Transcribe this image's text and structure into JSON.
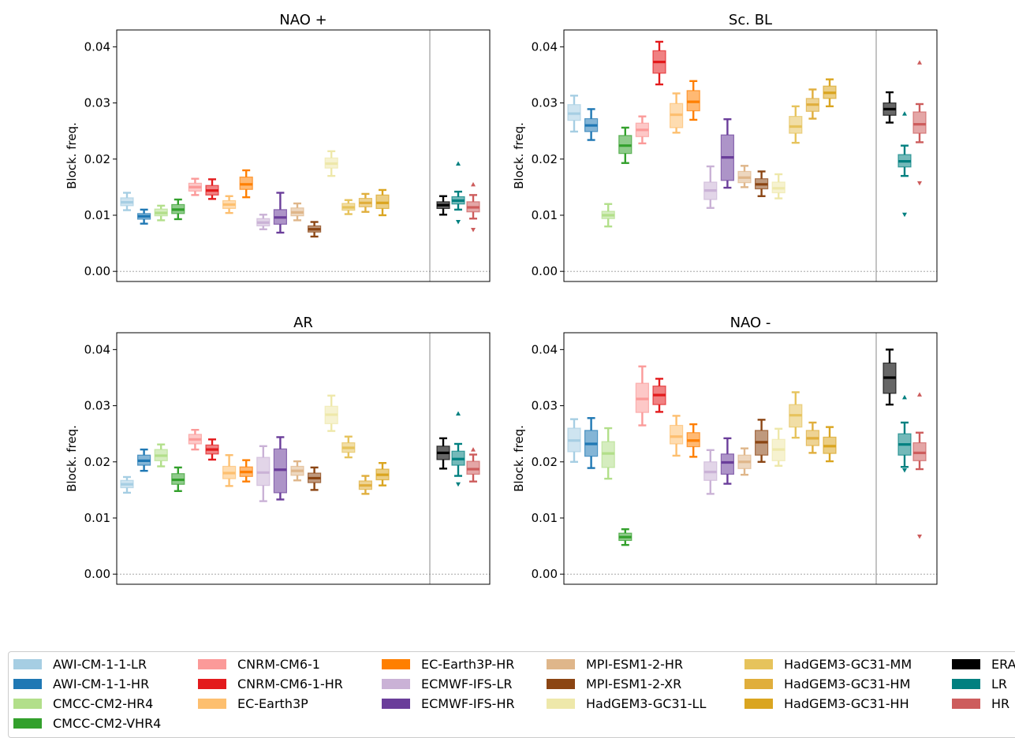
{
  "models": [
    {
      "name": "AWI-CM-1-1-LR",
      "color": "#a6cee3",
      "fill": "#a6cee3"
    },
    {
      "name": "AWI-CM-1-1-HR",
      "color": "#1f78b4",
      "fill": "#1f78b4"
    },
    {
      "name": "CMCC-CM2-HR4",
      "color": "#b2df8a",
      "fill": "#b2df8a"
    },
    {
      "name": "CMCC-CM2-VHR4",
      "color": "#33a02c",
      "fill": "#33a02c"
    },
    {
      "name": "CNRM-CM6-1",
      "color": "#fb9a99",
      "fill": "#fb9a99"
    },
    {
      "name": "CNRM-CM6-1-HR",
      "color": "#e31a1c",
      "fill": "#e31a1c"
    },
    {
      "name": "EC-Earth3P",
      "color": "#fdbf6f",
      "fill": "#fdbf6f"
    },
    {
      "name": "EC-Earth3P-HR",
      "color": "#ff7f00",
      "fill": "#ff7f00"
    },
    {
      "name": "ECMWF-IFS-LR",
      "color": "#cab2d6",
      "fill": "#cab2d6"
    },
    {
      "name": "ECMWF-IFS-HR",
      "color": "#6a3d9a",
      "fill": "#6a3d9a"
    },
    {
      "name": "MPI-ESM1-2-HR",
      "color": "#dfb68a",
      "fill": "#dfb68a"
    },
    {
      "name": "MPI-ESM1-2-XR",
      "color": "#8b4513",
      "fill": "#8b4513"
    },
    {
      "name": "HadGEM3-GC31-LL",
      "color": "#eee8aa",
      "fill": "#eee8aa"
    },
    {
      "name": "HadGEM3-GC31-MM",
      "color": "#e6c35c",
      "fill": "#e6c35c"
    },
    {
      "name": "HadGEM3-GC31-HM",
      "color": "#e0ae3c",
      "fill": "#e0ae3c"
    },
    {
      "name": "HadGEM3-GC31-HH",
      "color": "#daa520",
      "fill": "#daa520"
    }
  ],
  "groups": [
    {
      "name": "ERA",
      "color": "#000000",
      "fill": "#000000"
    },
    {
      "name": "LR",
      "color": "#008080",
      "fill": "#008080"
    },
    {
      "name": "HR",
      "color": "#cd5c5c",
      "fill": "#cd5c5c"
    }
  ],
  "legend": [
    [
      "AWI-CM-1-1-LR",
      "AWI-CM-1-1-HR",
      "CMCC-CM2-HR4",
      "CMCC-CM2-VHR4"
    ],
    [
      "CNRM-CM6-1",
      "CNRM-CM6-1-HR",
      "EC-Earth3P"
    ],
    [
      "EC-Earth3P-HR",
      "ECMWF-IFS-LR",
      "ECMWF-IFS-HR"
    ],
    [
      "MPI-ESM1-2-HR",
      "MPI-ESM1-2-XR",
      "HadGEM3-GC31-LL"
    ],
    [
      "HadGEM3-GC31-MM",
      "HadGEM3-GC31-HM",
      "HadGEM3-GC31-HH"
    ],
    [
      "ERA",
      "LR",
      "HR"
    ]
  ],
  "chart_data": [
    {
      "type": "box",
      "title": "NAO +",
      "ylabel": "Block. freq.",
      "ylim": [
        -0.0018,
        0.043
      ],
      "yticks": [
        "0.00",
        "0.01",
        "0.02",
        "0.03",
        "0.04"
      ],
      "models": [
        {
          "q1": 0.0117,
          "med": 0.0123,
          "q3": 0.0131,
          "lo": 0.0109,
          "hi": 0.014
        },
        {
          "q1": 0.0093,
          "med": 0.0098,
          "q3": 0.0103,
          "lo": 0.0085,
          "hi": 0.011
        },
        {
          "q1": 0.0099,
          "med": 0.0104,
          "q3": 0.0111,
          "lo": 0.0091,
          "hi": 0.0117
        },
        {
          "q1": 0.0103,
          "med": 0.011,
          "q3": 0.0119,
          "lo": 0.0093,
          "hi": 0.0128
        },
        {
          "q1": 0.0143,
          "med": 0.015,
          "q3": 0.0157,
          "lo": 0.0136,
          "hi": 0.0165
        },
        {
          "q1": 0.0136,
          "med": 0.0144,
          "q3": 0.0153,
          "lo": 0.0129,
          "hi": 0.0164
        },
        {
          "q1": 0.0112,
          "med": 0.0119,
          "q3": 0.0126,
          "lo": 0.0104,
          "hi": 0.0134
        },
        {
          "q1": 0.0146,
          "med": 0.0155,
          "q3": 0.0168,
          "lo": 0.0132,
          "hi": 0.018
        },
        {
          "q1": 0.0081,
          "med": 0.0087,
          "q3": 0.0094,
          "lo": 0.0075,
          "hi": 0.0101
        },
        {
          "q1": 0.0084,
          "med": 0.0096,
          "q3": 0.011,
          "lo": 0.0069,
          "hi": 0.014
        },
        {
          "q1": 0.0099,
          "med": 0.0105,
          "q3": 0.0113,
          "lo": 0.0091,
          "hi": 0.0121
        },
        {
          "q1": 0.007,
          "med": 0.0075,
          "q3": 0.0081,
          "lo": 0.0062,
          "hi": 0.0088
        },
        {
          "q1": 0.0184,
          "med": 0.0192,
          "q3": 0.0202,
          "lo": 0.017,
          "hi": 0.0214
        },
        {
          "q1": 0.0109,
          "med": 0.0114,
          "q3": 0.0121,
          "lo": 0.0102,
          "hi": 0.0127
        },
        {
          "q1": 0.0115,
          "med": 0.0122,
          "q3": 0.013,
          "lo": 0.0106,
          "hi": 0.0138
        },
        {
          "q1": 0.0112,
          "med": 0.0122,
          "q3": 0.0136,
          "lo": 0.01,
          "hi": 0.0145
        }
      ],
      "groups": [
        {
          "q1": 0.0112,
          "med": 0.0118,
          "q3": 0.0124,
          "lo": 0.0101,
          "hi": 0.0134,
          "fu": null,
          "fd": null
        },
        {
          "q1": 0.012,
          "med": 0.0126,
          "q3": 0.0133,
          "lo": 0.011,
          "hi": 0.0142,
          "fu": 0.0192,
          "fd": 0.0088
        },
        {
          "q1": 0.0106,
          "med": 0.0114,
          "q3": 0.0124,
          "lo": 0.0094,
          "hi": 0.0136,
          "fu": 0.0155,
          "fd": 0.0074
        }
      ]
    },
    {
      "type": "box",
      "title": "Sc. BL",
      "ylabel": "Block. freq.",
      "ylim": [
        -0.0018,
        0.043
      ],
      "yticks": [
        "0.00",
        "0.01",
        "0.02",
        "0.03",
        "0.04"
      ],
      "models": [
        {
          "q1": 0.0269,
          "med": 0.0281,
          "q3": 0.0297,
          "lo": 0.0249,
          "hi": 0.0313
        },
        {
          "q1": 0.0249,
          "med": 0.026,
          "q3": 0.0272,
          "lo": 0.0234,
          "hi": 0.0289
        },
        {
          "q1": 0.0094,
          "med": 0.01,
          "q3": 0.0107,
          "lo": 0.008,
          "hi": 0.012
        },
        {
          "q1": 0.021,
          "med": 0.0224,
          "q3": 0.0242,
          "lo": 0.0193,
          "hi": 0.0256
        },
        {
          "q1": 0.024,
          "med": 0.0252,
          "q3": 0.0264,
          "lo": 0.0228,
          "hi": 0.0276
        },
        {
          "q1": 0.0353,
          "med": 0.0373,
          "q3": 0.0393,
          "lo": 0.0333,
          "hi": 0.0409
        },
        {
          "q1": 0.0256,
          "med": 0.0279,
          "q3": 0.0299,
          "lo": 0.0247,
          "hi": 0.0317
        },
        {
          "q1": 0.0286,
          "med": 0.0302,
          "q3": 0.0322,
          "lo": 0.027,
          "hi": 0.0339
        },
        {
          "q1": 0.0128,
          "med": 0.0144,
          "q3": 0.0159,
          "lo": 0.0113,
          "hi": 0.0187
        },
        {
          "q1": 0.0162,
          "med": 0.0203,
          "q3": 0.0243,
          "lo": 0.0149,
          "hi": 0.0271
        },
        {
          "q1": 0.0158,
          "med": 0.0167,
          "q3": 0.0178,
          "lo": 0.015,
          "hi": 0.0188
        },
        {
          "q1": 0.0147,
          "med": 0.0155,
          "q3": 0.0165,
          "lo": 0.0134,
          "hi": 0.0178
        },
        {
          "q1": 0.014,
          "med": 0.0148,
          "q3": 0.0159,
          "lo": 0.013,
          "hi": 0.0173
        },
        {
          "q1": 0.0246,
          "med": 0.0258,
          "q3": 0.0276,
          "lo": 0.0229,
          "hi": 0.0294
        },
        {
          "q1": 0.0285,
          "med": 0.0297,
          "q3": 0.0308,
          "lo": 0.0272,
          "hi": 0.0324
        },
        {
          "q1": 0.0308,
          "med": 0.0318,
          "q3": 0.033,
          "lo": 0.0294,
          "hi": 0.0342
        }
      ],
      "groups": [
        {
          "q1": 0.0278,
          "med": 0.0289,
          "q3": 0.03,
          "lo": 0.0265,
          "hi": 0.0319,
          "fu": null,
          "fd": null
        },
        {
          "q1": 0.0186,
          "med": 0.0196,
          "q3": 0.0208,
          "lo": 0.017,
          "hi": 0.0224,
          "fu": 0.0281,
          "fd": 0.0101
        },
        {
          "q1": 0.0246,
          "med": 0.0262,
          "q3": 0.0284,
          "lo": 0.023,
          "hi": 0.0298,
          "fu": 0.0372,
          "fd": 0.0157
        }
      ]
    },
    {
      "type": "box",
      "title": "AR",
      "ylabel": "Block. freq.",
      "ylim": [
        -0.0018,
        0.043
      ],
      "yticks": [
        "0.00",
        "0.01",
        "0.02",
        "0.03",
        "0.04"
      ],
      "models": [
        {
          "q1": 0.0154,
          "med": 0.016,
          "q3": 0.0167,
          "lo": 0.0145,
          "hi": 0.0173
        },
        {
          "q1": 0.0194,
          "med": 0.0202,
          "q3": 0.0212,
          "lo": 0.0184,
          "hi": 0.0222
        },
        {
          "q1": 0.0202,
          "med": 0.0211,
          "q3": 0.0222,
          "lo": 0.0192,
          "hi": 0.0231
        },
        {
          "q1": 0.016,
          "med": 0.0168,
          "q3": 0.0179,
          "lo": 0.0148,
          "hi": 0.019
        },
        {
          "q1": 0.0232,
          "med": 0.024,
          "q3": 0.0249,
          "lo": 0.0222,
          "hi": 0.0257
        },
        {
          "q1": 0.0214,
          "med": 0.0222,
          "q3": 0.023,
          "lo": 0.0204,
          "hi": 0.024
        },
        {
          "q1": 0.017,
          "med": 0.018,
          "q3": 0.0192,
          "lo": 0.0157,
          "hi": 0.0212
        },
        {
          "q1": 0.0174,
          "med": 0.0182,
          "q3": 0.0191,
          "lo": 0.0165,
          "hi": 0.0203
        },
        {
          "q1": 0.0158,
          "med": 0.0181,
          "q3": 0.0208,
          "lo": 0.013,
          "hi": 0.0228
        },
        {
          "q1": 0.0145,
          "med": 0.0186,
          "q3": 0.0223,
          "lo": 0.0133,
          "hi": 0.0244
        },
        {
          "q1": 0.0176,
          "med": 0.0184,
          "q3": 0.0192,
          "lo": 0.0167,
          "hi": 0.0201
        },
        {
          "q1": 0.0163,
          "med": 0.0171,
          "q3": 0.018,
          "lo": 0.015,
          "hi": 0.019
        },
        {
          "q1": 0.0268,
          "med": 0.0284,
          "q3": 0.0299,
          "lo": 0.0255,
          "hi": 0.0318
        },
        {
          "q1": 0.0217,
          "med": 0.0225,
          "q3": 0.0234,
          "lo": 0.0208,
          "hi": 0.0245
        },
        {
          "q1": 0.0151,
          "med": 0.0158,
          "q3": 0.0166,
          "lo": 0.0143,
          "hi": 0.0175
        },
        {
          "q1": 0.0168,
          "med": 0.0177,
          "q3": 0.0187,
          "lo": 0.0158,
          "hi": 0.0198
        }
      ],
      "groups": [
        {
          "q1": 0.0204,
          "med": 0.0216,
          "q3": 0.0228,
          "lo": 0.0188,
          "hi": 0.0242,
          "fu": null,
          "fd": null
        },
        {
          "q1": 0.0194,
          "med": 0.0205,
          "q3": 0.0219,
          "lo": 0.0175,
          "hi": 0.0232,
          "fu": 0.0286,
          "fd": 0.016
        },
        {
          "q1": 0.0178,
          "med": 0.0187,
          "q3": 0.0201,
          "lo": 0.0165,
          "hi": 0.0213,
          "fu": 0.0222,
          "fd": null
        }
      ]
    },
    {
      "type": "box",
      "title": "NAO -",
      "ylabel": "Block. freq.",
      "ylim": [
        -0.0018,
        0.043
      ],
      "yticks": [
        "0.00",
        "0.01",
        "0.02",
        "0.03",
        "0.04"
      ],
      "models": [
        {
          "q1": 0.0218,
          "med": 0.0238,
          "q3": 0.026,
          "lo": 0.02,
          "hi": 0.0276
        },
        {
          "q1": 0.021,
          "med": 0.0232,
          "q3": 0.0256,
          "lo": 0.0189,
          "hi": 0.0278
        },
        {
          "q1": 0.019,
          "med": 0.0215,
          "q3": 0.0236,
          "lo": 0.017,
          "hi": 0.026
        },
        {
          "q1": 0.006,
          "med": 0.0066,
          "q3": 0.0073,
          "lo": 0.0052,
          "hi": 0.008
        },
        {
          "q1": 0.0288,
          "med": 0.0312,
          "q3": 0.034,
          "lo": 0.0265,
          "hi": 0.037
        },
        {
          "q1": 0.0302,
          "med": 0.0319,
          "q3": 0.0335,
          "lo": 0.0289,
          "hi": 0.0348
        },
        {
          "q1": 0.0232,
          "med": 0.0245,
          "q3": 0.0265,
          "lo": 0.0211,
          "hi": 0.0282
        },
        {
          "q1": 0.0227,
          "med": 0.0238,
          "q3": 0.0252,
          "lo": 0.0209,
          "hi": 0.0267
        },
        {
          "q1": 0.0167,
          "med": 0.0182,
          "q3": 0.02,
          "lo": 0.0143,
          "hi": 0.0221
        },
        {
          "q1": 0.0178,
          "med": 0.0199,
          "q3": 0.0214,
          "lo": 0.0161,
          "hi": 0.0242
        },
        {
          "q1": 0.0188,
          "med": 0.02,
          "q3": 0.0212,
          "lo": 0.0177,
          "hi": 0.0224
        },
        {
          "q1": 0.0212,
          "med": 0.0235,
          "q3": 0.0256,
          "lo": 0.02,
          "hi": 0.0275
        },
        {
          "q1": 0.0202,
          "med": 0.0222,
          "q3": 0.024,
          "lo": 0.0193,
          "hi": 0.0259
        },
        {
          "q1": 0.0262,
          "med": 0.0283,
          "q3": 0.0302,
          "lo": 0.0243,
          "hi": 0.0324
        },
        {
          "q1": 0.0229,
          "med": 0.0242,
          "q3": 0.0256,
          "lo": 0.0216,
          "hi": 0.027
        },
        {
          "q1": 0.0215,
          "med": 0.0228,
          "q3": 0.0244,
          "lo": 0.0201,
          "hi": 0.0262
        }
      ],
      "groups": [
        {
          "q1": 0.0322,
          "med": 0.035,
          "q3": 0.0376,
          "lo": 0.0302,
          "hi": 0.04,
          "fu": null,
          "fd": null
        },
        {
          "q1": 0.0212,
          "med": 0.0231,
          "q3": 0.025,
          "lo": 0.0191,
          "hi": 0.027,
          "fu": 0.0315,
          "fd": 0.0185
        },
        {
          "q1": 0.0202,
          "med": 0.0216,
          "q3": 0.0234,
          "lo": 0.0187,
          "hi": 0.0252,
          "fu": 0.032,
          "fd": 0.0067
        }
      ]
    }
  ]
}
